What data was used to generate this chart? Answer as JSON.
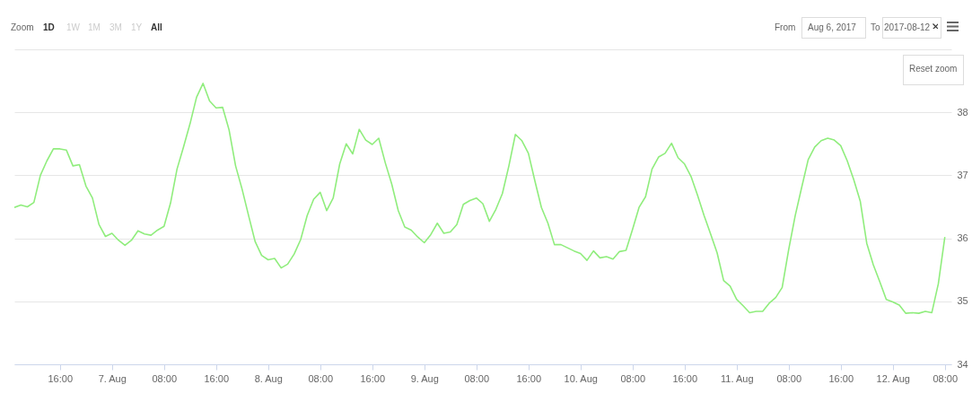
{
  "chart_data": {
    "type": "line",
    "x": [
      "2017-08-06T09:00",
      "2017-08-06T10:00",
      "2017-08-06T11:00",
      "2017-08-06T12:00",
      "2017-08-06T13:00",
      "2017-08-06T14:00",
      "2017-08-06T15:00",
      "2017-08-06T16:00",
      "2017-08-06T17:00",
      "2017-08-06T18:00",
      "2017-08-06T19:00",
      "2017-08-06T20:00",
      "2017-08-06T21:00",
      "2017-08-06T22:00",
      "2017-08-06T23:00",
      "2017-08-07T00:00",
      "2017-08-07T01:00",
      "2017-08-07T02:00",
      "2017-08-07T03:00",
      "2017-08-07T04:00",
      "2017-08-07T05:00",
      "2017-08-07T06:00",
      "2017-08-07T07:00",
      "2017-08-07T08:00",
      "2017-08-07T09:00",
      "2017-08-07T10:00",
      "2017-08-07T11:00",
      "2017-08-07T12:00",
      "2017-08-07T13:00",
      "2017-08-07T14:00",
      "2017-08-07T15:00",
      "2017-08-07T16:00",
      "2017-08-07T17:00",
      "2017-08-07T18:00",
      "2017-08-07T19:00",
      "2017-08-07T20:00",
      "2017-08-07T21:00",
      "2017-08-07T22:00",
      "2017-08-07T23:00",
      "2017-08-08T00:00",
      "2017-08-08T01:00",
      "2017-08-08T02:00",
      "2017-08-08T03:00",
      "2017-08-08T04:00",
      "2017-08-08T05:00",
      "2017-08-08T06:00",
      "2017-08-08T07:00",
      "2017-08-08T08:00",
      "2017-08-08T09:00",
      "2017-08-08T10:00",
      "2017-08-08T11:00",
      "2017-08-08T12:00",
      "2017-08-08T13:00",
      "2017-08-08T14:00",
      "2017-08-08T15:00",
      "2017-08-08T16:00",
      "2017-08-08T17:00",
      "2017-08-08T18:00",
      "2017-08-08T19:00",
      "2017-08-08T20:00",
      "2017-08-08T21:00",
      "2017-08-08T22:00",
      "2017-08-08T23:00",
      "2017-08-09T00:00",
      "2017-08-09T01:00",
      "2017-08-09T02:00",
      "2017-08-09T03:00",
      "2017-08-09T04:00",
      "2017-08-09T05:00",
      "2017-08-09T06:00",
      "2017-08-09T07:00",
      "2017-08-09T08:00",
      "2017-08-09T09:00",
      "2017-08-09T10:00",
      "2017-08-09T11:00",
      "2017-08-09T12:00",
      "2017-08-09T13:00",
      "2017-08-09T14:00",
      "2017-08-09T15:00",
      "2017-08-09T16:00",
      "2017-08-09T17:00",
      "2017-08-09T18:00",
      "2017-08-09T19:00",
      "2017-08-09T20:00",
      "2017-08-09T21:00",
      "2017-08-09T22:00",
      "2017-08-09T23:00",
      "2017-08-10T00:00",
      "2017-08-10T01:00",
      "2017-08-10T02:00",
      "2017-08-10T03:00",
      "2017-08-10T04:00",
      "2017-08-10T05:00",
      "2017-08-10T06:00",
      "2017-08-10T07:00",
      "2017-08-10T08:00",
      "2017-08-10T09:00",
      "2017-08-10T10:00",
      "2017-08-10T11:00",
      "2017-08-10T12:00",
      "2017-08-10T13:00",
      "2017-08-10T14:00",
      "2017-08-10T15:00",
      "2017-08-10T16:00",
      "2017-08-10T17:00",
      "2017-08-10T18:00",
      "2017-08-10T19:00",
      "2017-08-10T20:00",
      "2017-08-10T21:00",
      "2017-08-10T22:00",
      "2017-08-10T23:00",
      "2017-08-11T00:00",
      "2017-08-11T01:00",
      "2017-08-11T02:00",
      "2017-08-11T03:00",
      "2017-08-11T04:00",
      "2017-08-11T05:00",
      "2017-08-11T06:00",
      "2017-08-11T07:00",
      "2017-08-11T08:00",
      "2017-08-11T09:00",
      "2017-08-11T10:00",
      "2017-08-11T11:00",
      "2017-08-11T12:00",
      "2017-08-11T13:00",
      "2017-08-11T14:00",
      "2017-08-11T15:00",
      "2017-08-11T16:00",
      "2017-08-11T17:00",
      "2017-08-11T18:00",
      "2017-08-11T19:00",
      "2017-08-11T20:00",
      "2017-08-11T21:00",
      "2017-08-11T22:00",
      "2017-08-11T23:00",
      "2017-08-12T00:00",
      "2017-08-12T01:00",
      "2017-08-12T02:00",
      "2017-08-12T03:00",
      "2017-08-12T04:00",
      "2017-08-12T05:00",
      "2017-08-12T06:00",
      "2017-08-12T07:00",
      "2017-08-12T08:00"
    ],
    "series": [
      {
        "color": "#90ed7d",
        "values": [
          36.49,
          36.53,
          36.5,
          36.57,
          37.0,
          37.23,
          37.42,
          37.42,
          37.4,
          37.15,
          37.17,
          36.83,
          36.64,
          36.22,
          36.03,
          36.08,
          35.97,
          35.89,
          35.97,
          36.12,
          36.07,
          36.05,
          36.13,
          36.19,
          36.56,
          37.1,
          37.45,
          37.82,
          38.24,
          38.46,
          38.18,
          38.07,
          38.08,
          37.72,
          37.15,
          36.78,
          36.36,
          35.95,
          35.73,
          35.66,
          35.68,
          35.53,
          35.59,
          35.75,
          35.98,
          36.36,
          36.62,
          36.73,
          36.44,
          36.64,
          37.18,
          37.5,
          37.34,
          37.73,
          37.56,
          37.49,
          37.59,
          37.2,
          36.86,
          36.44,
          36.18,
          36.13,
          36.02,
          35.93,
          36.06,
          36.24,
          36.08,
          36.1,
          36.22,
          36.54,
          36.6,
          36.64,
          36.55,
          36.27,
          36.46,
          36.71,
          37.15,
          37.65,
          37.55,
          37.35,
          36.91,
          36.49,
          36.24,
          35.9,
          35.9,
          35.85,
          35.8,
          35.76,
          35.65,
          35.8,
          35.69,
          35.71,
          35.67,
          35.79,
          35.81,
          36.14,
          36.49,
          36.66,
          37.1,
          37.29,
          37.35,
          37.51,
          37.28,
          37.18,
          36.98,
          36.68,
          36.36,
          36.07,
          35.77,
          35.33,
          35.24,
          35.03,
          34.93,
          34.82,
          34.84,
          34.84,
          34.97,
          35.06,
          35.22,
          35.82,
          36.36,
          36.81,
          37.25,
          37.45,
          37.55,
          37.59,
          37.56,
          37.47,
          37.23,
          36.93,
          36.59,
          35.92,
          35.58,
          35.31,
          35.03,
          34.99,
          34.94,
          34.81,
          34.82,
          34.81,
          34.84,
          34.82,
          35.28,
          36.02
        ]
      }
    ],
    "xlim": [
      "2017-08-06T09:00",
      "2017-08-12T09:00"
    ],
    "xticks": [
      {
        "value": "2017-08-06T16:00",
        "label": "16:00"
      },
      {
        "value": "2017-08-07T00:00",
        "label": "7. Aug"
      },
      {
        "value": "2017-08-07T08:00",
        "label": "08:00"
      },
      {
        "value": "2017-08-07T16:00",
        "label": "16:00"
      },
      {
        "value": "2017-08-08T00:00",
        "label": "8. Aug"
      },
      {
        "value": "2017-08-08T08:00",
        "label": "08:00"
      },
      {
        "value": "2017-08-08T16:00",
        "label": "16:00"
      },
      {
        "value": "2017-08-09T00:00",
        "label": "9. Aug"
      },
      {
        "value": "2017-08-09T08:00",
        "label": "08:00"
      },
      {
        "value": "2017-08-09T16:00",
        "label": "16:00"
      },
      {
        "value": "2017-08-10T00:00",
        "label": "10. Aug"
      },
      {
        "value": "2017-08-10T08:00",
        "label": "08:00"
      },
      {
        "value": "2017-08-10T16:00",
        "label": "16:00"
      },
      {
        "value": "2017-08-11T00:00",
        "label": "11. Aug"
      },
      {
        "value": "2017-08-11T08:00",
        "label": "08:00"
      },
      {
        "value": "2017-08-11T16:00",
        "label": "16:00"
      },
      {
        "value": "2017-08-12T00:00",
        "label": "12. Aug"
      },
      {
        "value": "2017-08-12T08:00",
        "label": "08:00"
      }
    ],
    "ylim": [
      34,
      39
    ],
    "yticks": [
      34,
      35,
      36,
      37,
      38,
      {
        "value": 39,
        "label": null
      }
    ],
    "grid": "y",
    "annotations": [
      "Zoom",
      "1D",
      "1W",
      "1M",
      "3M",
      "1Y",
      "All",
      "From",
      "Aug 6, 2017",
      "To",
      "2017-08-12",
      "Reset zoom"
    ]
  }
}
